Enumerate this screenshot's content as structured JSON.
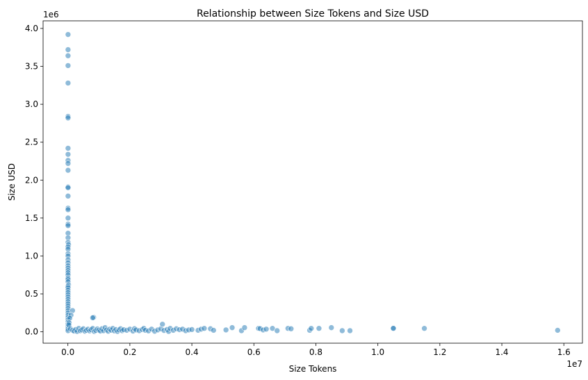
{
  "chart_data": {
    "type": "scatter",
    "title": "Relationship between Size Tokens and Size USD",
    "xlabel": "Size Tokens",
    "ylabel": "Size USD",
    "x_scale_label": "1e7",
    "y_scale_label": "1e6",
    "xlim": [
      -800000,
      16600000
    ],
    "ylim": [
      -150000,
      4100000
    ],
    "x_ticks": [
      0,
      2000000,
      4000000,
      6000000,
      8000000,
      10000000,
      12000000,
      14000000,
      16000000
    ],
    "x_tick_labels": [
      "0.0",
      "0.2",
      "0.4",
      "0.6",
      "0.8",
      "1.0",
      "1.2",
      "1.4",
      "1.6"
    ],
    "y_ticks": [
      0,
      500000,
      1000000,
      1500000,
      2000000,
      2500000,
      3000000,
      3500000,
      4000000
    ],
    "y_tick_labels": [
      "0.0",
      "0.5",
      "1.0",
      "1.5",
      "2.0",
      "2.5",
      "3.0",
      "3.5",
      "4.0"
    ],
    "grid": false,
    "point_color": "#1f77b4",
    "point_alpha": 0.5,
    "points": [
      [
        5000,
        3920000
      ],
      [
        5000,
        3720000
      ],
      [
        5000,
        3640000
      ],
      [
        5000,
        3510000
      ],
      [
        5000,
        3280000
      ],
      [
        5000,
        2840000
      ],
      [
        5000,
        2820000
      ],
      [
        5000,
        2420000
      ],
      [
        5000,
        2340000
      ],
      [
        5000,
        2260000
      ],
      [
        5000,
        2220000
      ],
      [
        5000,
        2130000
      ],
      [
        5000,
        1910000
      ],
      [
        5000,
        1900000
      ],
      [
        5000,
        1790000
      ],
      [
        5000,
        1630000
      ],
      [
        5000,
        1610000
      ],
      [
        5000,
        1500000
      ],
      [
        5000,
        1420000
      ],
      [
        5000,
        1400000
      ],
      [
        5000,
        1300000
      ],
      [
        5000,
        1240000
      ],
      [
        5000,
        1180000
      ],
      [
        20000,
        1150000
      ],
      [
        5000,
        1120000
      ],
      [
        5000,
        1090000
      ],
      [
        5000,
        1030000
      ],
      [
        5000,
        1000000
      ],
      [
        5000,
        950000
      ],
      [
        5000,
        910000
      ],
      [
        5000,
        870000
      ],
      [
        5000,
        840000
      ],
      [
        5000,
        810000
      ],
      [
        5000,
        780000
      ],
      [
        5000,
        750000
      ],
      [
        5000,
        710000
      ],
      [
        5000,
        690000
      ],
      [
        5000,
        660000
      ],
      [
        20000,
        620000
      ],
      [
        5000,
        600000
      ],
      [
        5000,
        580000
      ],
      [
        5000,
        550000
      ],
      [
        5000,
        520000
      ],
      [
        5000,
        490000
      ],
      [
        5000,
        460000
      ],
      [
        5000,
        430000
      ],
      [
        5000,
        400000
      ],
      [
        5000,
        370000
      ],
      [
        5000,
        340000
      ],
      [
        5000,
        310000
      ],
      [
        5000,
        280000
      ],
      [
        5000,
        250000
      ],
      [
        5000,
        220000
      ],
      [
        5000,
        190000
      ],
      [
        5000,
        160000
      ],
      [
        5000,
        130000
      ],
      [
        5000,
        100000
      ],
      [
        5000,
        70000
      ],
      [
        5000,
        40000
      ],
      [
        5000,
        15000
      ],
      [
        150000,
        280000
      ],
      [
        100000,
        220000
      ],
      [
        60000,
        180000
      ],
      [
        40000,
        120000
      ],
      [
        30000,
        90000
      ],
      [
        830000,
        190000
      ],
      [
        800000,
        185000
      ],
      [
        80000,
        40000
      ],
      [
        150000,
        20000
      ],
      [
        200000,
        10000
      ],
      [
        250000,
        30000
      ],
      [
        300000,
        5000
      ],
      [
        350000,
        45000
      ],
      [
        400000,
        15000
      ],
      [
        450000,
        25000
      ],
      [
        500000,
        40000
      ],
      [
        550000,
        8000
      ],
      [
        600000,
        20000
      ],
      [
        650000,
        35000
      ],
      [
        700000,
        12000
      ],
      [
        750000,
        28000
      ],
      [
        800000,
        45000
      ],
      [
        850000,
        5000
      ],
      [
        900000,
        18000
      ],
      [
        950000,
        38000
      ],
      [
        1000000,
        22000
      ],
      [
        1050000,
        10000
      ],
      [
        1100000,
        40000
      ],
      [
        1150000,
        15000
      ],
      [
        1200000,
        55000
      ],
      [
        1250000,
        25000
      ],
      [
        1300000,
        8000
      ],
      [
        1350000,
        35000
      ],
      [
        1400000,
        20000
      ],
      [
        1450000,
        45000
      ],
      [
        1500000,
        12000
      ],
      [
        1550000,
        30000
      ],
      [
        1600000,
        5000
      ],
      [
        1650000,
        25000
      ],
      [
        1700000,
        40000
      ],
      [
        1750000,
        15000
      ],
      [
        1800000,
        28000
      ],
      [
        1900000,
        20000
      ],
      [
        2000000,
        35000
      ],
      [
        2100000,
        10000
      ],
      [
        2150000,
        42000
      ],
      [
        2200000,
        25000
      ],
      [
        2300000,
        15000
      ],
      [
        2400000,
        30000
      ],
      [
        2450000,
        45000
      ],
      [
        2500000,
        20000
      ],
      [
        2600000,
        12000
      ],
      [
        2700000,
        35000
      ],
      [
        2800000,
        8000
      ],
      [
        2900000,
        25000
      ],
      [
        3000000,
        40000
      ],
      [
        3050000,
        100000
      ],
      [
        3100000,
        18000
      ],
      [
        3200000,
        30000
      ],
      [
        3250000,
        5000
      ],
      [
        3300000,
        45000
      ],
      [
        3400000,
        20000
      ],
      [
        3500000,
        40000
      ],
      [
        3600000,
        28000
      ],
      [
        3700000,
        35000
      ],
      [
        3800000,
        15000
      ],
      [
        3900000,
        25000
      ],
      [
        4000000,
        30000
      ],
      [
        4200000,
        20000
      ],
      [
        4300000,
        35000
      ],
      [
        4400000,
        45000
      ],
      [
        4600000,
        40000
      ],
      [
        4700000,
        20000
      ],
      [
        5100000,
        25000
      ],
      [
        5300000,
        55000
      ],
      [
        5600000,
        15000
      ],
      [
        5700000,
        55000
      ],
      [
        6150000,
        45000
      ],
      [
        6200000,
        42000
      ],
      [
        6300000,
        25000
      ],
      [
        6400000,
        35000
      ],
      [
        6600000,
        45000
      ],
      [
        6750000,
        15000
      ],
      [
        7100000,
        45000
      ],
      [
        7200000,
        40000
      ],
      [
        7800000,
        20000
      ],
      [
        7850000,
        45000
      ],
      [
        8100000,
        45000
      ],
      [
        8500000,
        55000
      ],
      [
        8850000,
        15000
      ],
      [
        9100000,
        15000
      ],
      [
        10500000,
        50000
      ],
      [
        10500000,
        45000
      ],
      [
        11500000,
        45000
      ],
      [
        15800000,
        20000
      ]
    ]
  }
}
